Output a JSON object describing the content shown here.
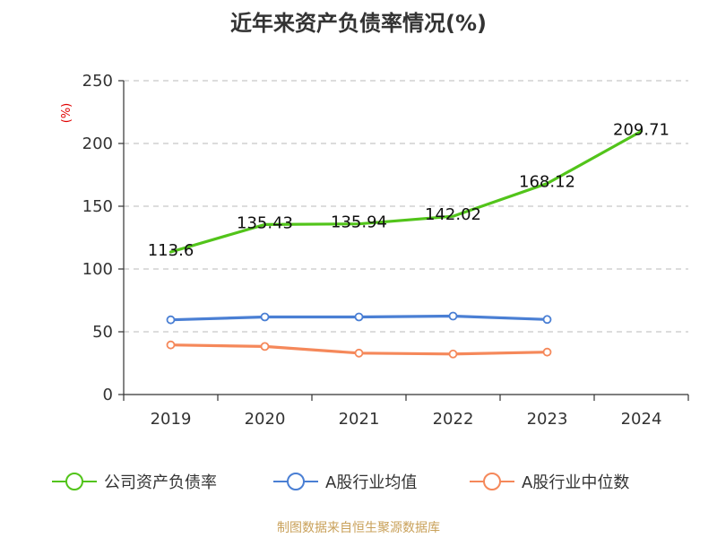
{
  "title": "近年来资产负债率情况(%)",
  "source": "制图数据来自恒生聚源数据库",
  "chart_data": {
    "type": "line",
    "ylabel": "(%)",
    "ylim": [
      0,
      250
    ],
    "yticks": [
      0,
      50,
      100,
      150,
      200,
      250
    ],
    "categories": [
      "2019",
      "2020",
      "2021",
      "2022",
      "2023",
      "2024"
    ],
    "grid": true,
    "legend_position": "bottom",
    "series": [
      {
        "name": "公司资产负债率",
        "color": "#52c41a",
        "values": [
          113.6,
          135.43,
          135.94,
          142.02,
          168.12,
          209.71
        ],
        "labels": [
          "113.6",
          "135.43",
          "135.94",
          "142.02",
          "168.12",
          "209.71"
        ],
        "show_markers": false
      },
      {
        "name": "A股行业均值",
        "color": "#4a7fd4",
        "values": [
          59.5,
          61.8,
          61.8,
          62.5,
          59.8,
          null
        ],
        "show_markers": true
      },
      {
        "name": "A股行业中位数",
        "color": "#f5885a",
        "values": [
          39.5,
          38.3,
          33.0,
          32.3,
          33.8,
          null
        ],
        "show_markers": true
      }
    ]
  }
}
